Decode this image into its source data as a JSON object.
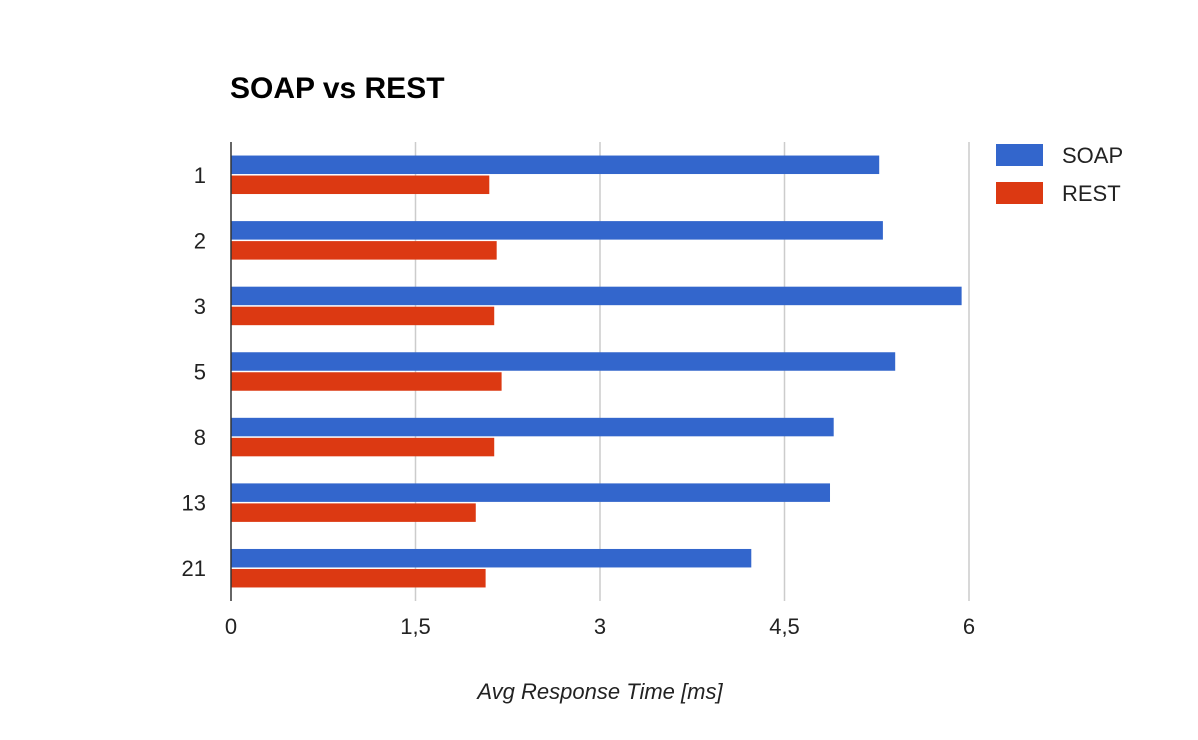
{
  "chart_data": {
    "type": "bar",
    "orientation": "horizontal",
    "title": "SOAP vs REST",
    "xlabel": "Avg Response Time [ms]",
    "ylabel": "",
    "categories": [
      "1",
      "2",
      "3",
      "5",
      "8",
      "13",
      "21"
    ],
    "series": [
      {
        "name": "SOAP",
        "color": "#3366cc",
        "values": [
          5.27,
          5.3,
          5.94,
          5.4,
          4.9,
          4.87,
          4.23
        ]
      },
      {
        "name": "REST",
        "color": "#dc3912",
        "values": [
          2.1,
          2.16,
          2.14,
          2.2,
          2.14,
          1.99,
          2.07
        ]
      }
    ],
    "xlim": [
      0,
      6
    ],
    "xticks": [
      "0",
      "1,5",
      "3",
      "4,5",
      "6"
    ],
    "xtick_values": [
      0,
      1.5,
      3,
      4.5,
      6
    ],
    "grid": true,
    "legend_position": "right"
  }
}
